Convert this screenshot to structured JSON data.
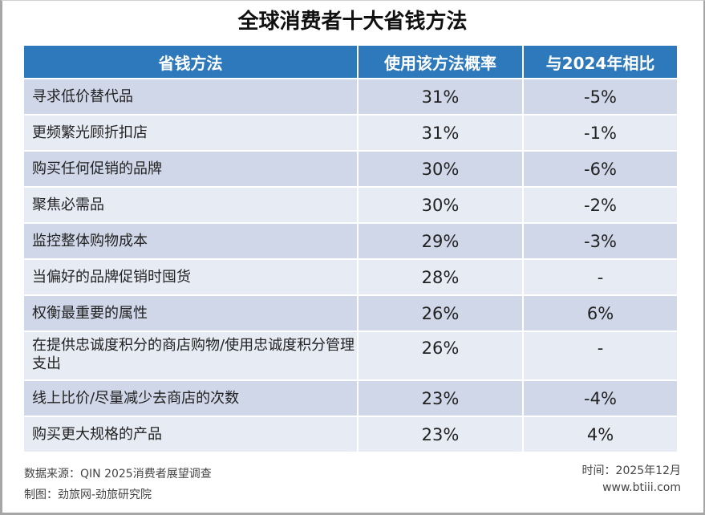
{
  "title": "全球消费者十大省钱方法",
  "chart_data": {
    "type": "table",
    "title": "全球消费者十大省钱方法",
    "columns": [
      "省钱方法",
      "使用该方法概率",
      "与2024年相比"
    ],
    "rows": [
      [
        "寻求低价替代品",
        "31%",
        "-5%"
      ],
      [
        "更频繁光顾折扣店",
        "31%",
        "-1%"
      ],
      [
        "购买任何促销的品牌",
        "30%",
        "-6%"
      ],
      [
        "聚焦必需品",
        "30%",
        "-2%"
      ],
      [
        "监控整体购物成本",
        "29%",
        "-3%"
      ],
      [
        "当偏好的品牌促销时囤货",
        "28%",
        "-"
      ],
      [
        "权衡最重要的属性",
        "26%",
        "6%"
      ],
      [
        "在提供忠诚度积分的商店购物/使用忠诚度积分管理支出",
        "26%",
        "-"
      ],
      [
        "线上比价/尽量减少去商店的次数",
        "23%",
        "-4%"
      ],
      [
        "购买更大规格的产品",
        "23%",
        "4%"
      ]
    ]
  },
  "footer": {
    "source": "数据来源：QIN 2025消费者展望调查",
    "maker": "制图：劲旅网-劲旅研究院",
    "time": "时间：2025年12月",
    "site": "www.btiii.com"
  },
  "colors": {
    "header": "#2e79bb",
    "row_odd": "#cfd7e8",
    "row_even": "#e7ebf4"
  }
}
